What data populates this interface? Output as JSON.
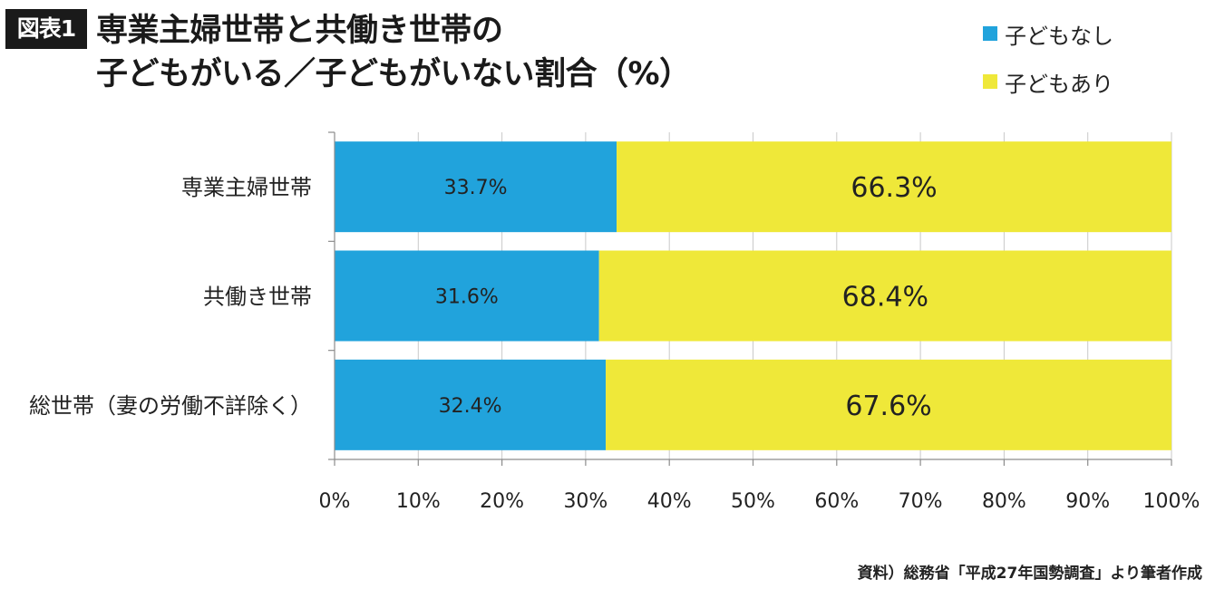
{
  "figure_label": "図表1",
  "title_line1": "専業主婦世帯と共働き世帯の",
  "title_line2": "子どもがいる／子どもがいない割合（%）",
  "source": "資料）総務省「平成27年国勢調査」より筆者作成",
  "chart_data": {
    "type": "bar",
    "orientation": "horizontal",
    "stacked": true,
    "categories": [
      "専業主婦世帯",
      "共働き世帯",
      "総世帯（妻の労働不詳除く）"
    ],
    "series": [
      {
        "name": "子どもなし",
        "color": "#21a3dc",
        "values": [
          33.7,
          31.6,
          32.4
        ],
        "labels": [
          "33.7%",
          "31.6%",
          "32.4%"
        ]
      },
      {
        "name": "子どもあり",
        "color": "#efe839",
        "values": [
          66.3,
          68.4,
          67.6
        ],
        "labels": [
          "66.3%",
          "68.4%",
          "67.6%"
        ]
      }
    ],
    "xlim": [
      0,
      100
    ],
    "xticks": [
      "0%",
      "10%",
      "20%",
      "30%",
      "40%",
      "50%",
      "60%",
      "70%",
      "80%",
      "90%",
      "100%"
    ],
    "grid": "vertical",
    "legend_position": "top-right"
  }
}
